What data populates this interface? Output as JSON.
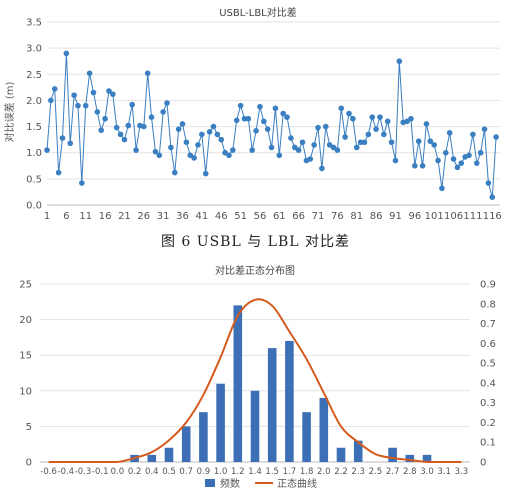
{
  "figure_caption": "图 6   USBL 与 LBL 对比差",
  "chart_data": [
    {
      "type": "line",
      "title": "USBL-LBL对比差",
      "ylabel": "对比误差 (m)",
      "xlabel": "",
      "ylim": [
        0,
        3.5
      ],
      "yticks": [
        0,
        0.5,
        1.0,
        1.5,
        2.0,
        2.5,
        3.0,
        3.5
      ],
      "xlim": [
        1,
        118
      ],
      "xticks": [
        1,
        6,
        11,
        16,
        21,
        26,
        31,
        36,
        41,
        46,
        51,
        56,
        61,
        66,
        71,
        76,
        81,
        86,
        91,
        96,
        101,
        106,
        111,
        116
      ],
      "marker": "circle",
      "color": "#3a7fc1",
      "grid": "horizontal",
      "series": [
        {
          "values": [
            1.05,
            2.0,
            2.22,
            0.62,
            1.28,
            2.9,
            1.18,
            2.1,
            1.9,
            0.42,
            1.9,
            2.52,
            2.15,
            1.78,
            1.43,
            1.65,
            2.18,
            2.12,
            1.48,
            1.35,
            1.25,
            1.52,
            1.92,
            1.05,
            1.52,
            1.5,
            2.52,
            1.68,
            1.02,
            0.95,
            1.78,
            1.95,
            1.1,
            0.62,
            1.45,
            1.55,
            1.2,
            0.95,
            0.9,
            1.15,
            1.35,
            0.6,
            1.4,
            1.5,
            1.35,
            1.25,
            1.0,
            0.95,
            1.05,
            1.62,
            1.9,
            1.65,
            1.65,
            1.05,
            1.42,
            1.88,
            1.6,
            1.45,
            1.1,
            1.85,
            0.95,
            1.75,
            1.68,
            1.28,
            1.1,
            1.05,
            1.2,
            0.85,
            0.88,
            1.15,
            1.48,
            0.7,
            1.5,
            1.15,
            1.1,
            1.05,
            1.85,
            1.3,
            1.75,
            1.65,
            1.1,
            1.2,
            1.2,
            1.35,
            1.68,
            1.45,
            1.68,
            1.35,
            1.6,
            1.2,
            0.85,
            2.75,
            1.58,
            1.6,
            1.65,
            0.75,
            1.22,
            0.75,
            1.55,
            1.22,
            1.15,
            0.85,
            0.32,
            1.0,
            1.38,
            0.88,
            0.72,
            0.8,
            0.92,
            0.95,
            1.35,
            0.8,
            1.0,
            1.45,
            0.42,
            0.15,
            1.3
          ]
        }
      ]
    },
    {
      "type": "bar",
      "title": "对比差正态分布图",
      "categories": [
        "-0.6",
        "-0.4",
        "-0.3",
        "-0.1",
        "0.0",
        "0.2",
        "0.4",
        "0.5",
        "0.7",
        "0.9",
        "1.0",
        "1.2",
        "1.4",
        "1.5",
        "1.7",
        "1.8",
        "2.0",
        "2.2",
        "2.3",
        "2.5",
        "2.7",
        "2.8",
        "3.0",
        "3.1",
        "3.3"
      ],
      "ylim": [
        0,
        25
      ],
      "yticks": [
        0,
        5,
        10,
        15,
        20,
        25
      ],
      "y2lim": [
        0,
        0.9
      ],
      "y2ticks": [
        0,
        0.1,
        0.2,
        0.3,
        0.4,
        0.5,
        0.6,
        0.7,
        0.8,
        0.9
      ],
      "legend_position": "bottom",
      "series": [
        {
          "name": "频数",
          "type": "bar",
          "axis": "left",
          "color": "#3d6fb6",
          "values": [
            0,
            0,
            0,
            0,
            0,
            1,
            1,
            2,
            5,
            7,
            11,
            22,
            10,
            16,
            17,
            7,
            9,
            2,
            3,
            0,
            2,
            1,
            1,
            0,
            0
          ]
        },
        {
          "name": "正态曲线",
          "type": "line",
          "axis": "right",
          "color": "#d55a1e",
          "values": [
            0.0,
            0.0,
            0.0,
            0.0,
            0.0,
            0.02,
            0.05,
            0.11,
            0.2,
            0.34,
            0.53,
            0.74,
            0.82,
            0.79,
            0.66,
            0.52,
            0.35,
            0.18,
            0.1,
            0.04,
            0.02,
            0.01,
            0.0,
            0.0,
            0.0
          ]
        }
      ]
    }
  ]
}
